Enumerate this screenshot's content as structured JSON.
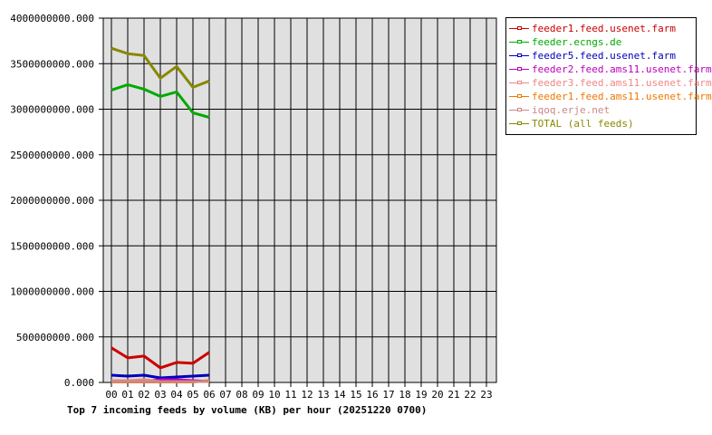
{
  "chart_data": {
    "type": "line",
    "title": "Top 7 incoming feeds by volume (KB) per hour (20251220 0700)",
    "xlabel": "",
    "ylabel": "",
    "ylim": [
      0,
      4000000000
    ],
    "grid": true,
    "legend_position": "right",
    "y_ticks": [
      "0.000",
      "500000000.000",
      "1000000000.000",
      "1500000000.000",
      "2000000000.000",
      "2500000000.000",
      "3000000000.000",
      "3500000000.000",
      "4000000000.000"
    ],
    "categories": [
      "00",
      "01",
      "02",
      "03",
      "04",
      "05",
      "06",
      "07",
      "08",
      "09",
      "10",
      "11",
      "12",
      "13",
      "14",
      "15",
      "16",
      "17",
      "18",
      "19",
      "20",
      "21",
      "22",
      "23"
    ],
    "series": [
      {
        "name": "feeder1.feed.usenet.farm",
        "color": "#cc0000",
        "values": [
          380000000,
          270000000,
          290000000,
          160000000,
          220000000,
          210000000,
          330000000
        ]
      },
      {
        "name": "feeder.ecngs.de",
        "color": "#00aa00",
        "values": [
          3210000000,
          3270000000,
          3220000000,
          3140000000,
          3190000000,
          2960000000,
          2910000000
        ]
      },
      {
        "name": "feeder5.feed.usenet.farm",
        "color": "#0000bb",
        "values": [
          80000000,
          70000000,
          80000000,
          50000000,
          60000000,
          70000000,
          80000000
        ]
      },
      {
        "name": "feeder2.feed.ams11.usenet.farm",
        "color": "#bb00bb",
        "values": [
          10000000,
          10000000,
          10000000,
          30000000,
          30000000,
          20000000,
          10000000
        ]
      },
      {
        "name": "feeder3.feed.ams11.usenet.farm",
        "color": "#ee8888",
        "values": [
          20000000,
          20000000,
          30000000,
          10000000,
          10000000,
          10000000,
          10000000
        ]
      },
      {
        "name": "feeder1.feed.ams11.usenet.farm",
        "color": "#ee7700",
        "values": [
          5000000,
          5000000,
          5000000,
          5000000,
          5000000,
          5000000,
          20000000
        ]
      },
      {
        "name": "iqoq.erje.net",
        "color": "#cc8888",
        "values": [
          10000000,
          10000000,
          10000000,
          10000000,
          10000000,
          10000000,
          10000000
        ]
      },
      {
        "name": "TOTAL (all feeds)",
        "color": "#888800",
        "values": [
          3670000000,
          3610000000,
          3590000000,
          3340000000,
          3470000000,
          3240000000,
          3310000000
        ]
      }
    ]
  },
  "legend": {
    "items": [
      {
        "label": "feeder1.feed.usenet.farm",
        "color": "#cc0000"
      },
      {
        "label": "feeder.ecngs.de",
        "color": "#00aa00"
      },
      {
        "label": "feeder5.feed.usenet.farm",
        "color": "#0000bb"
      },
      {
        "label": "feeder2.feed.ams11.usenet.farm",
        "color": "#bb00bb"
      },
      {
        "label": "feeder3.feed.ams11.usenet.farm",
        "color": "#ee8888"
      },
      {
        "label": "feeder1.feed.ams11.usenet.farm",
        "color": "#ee7700"
      },
      {
        "label": "iqoq.erje.net",
        "color": "#cc8888"
      },
      {
        "label": "TOTAL (all feeds)",
        "color": "#888800"
      }
    ]
  }
}
